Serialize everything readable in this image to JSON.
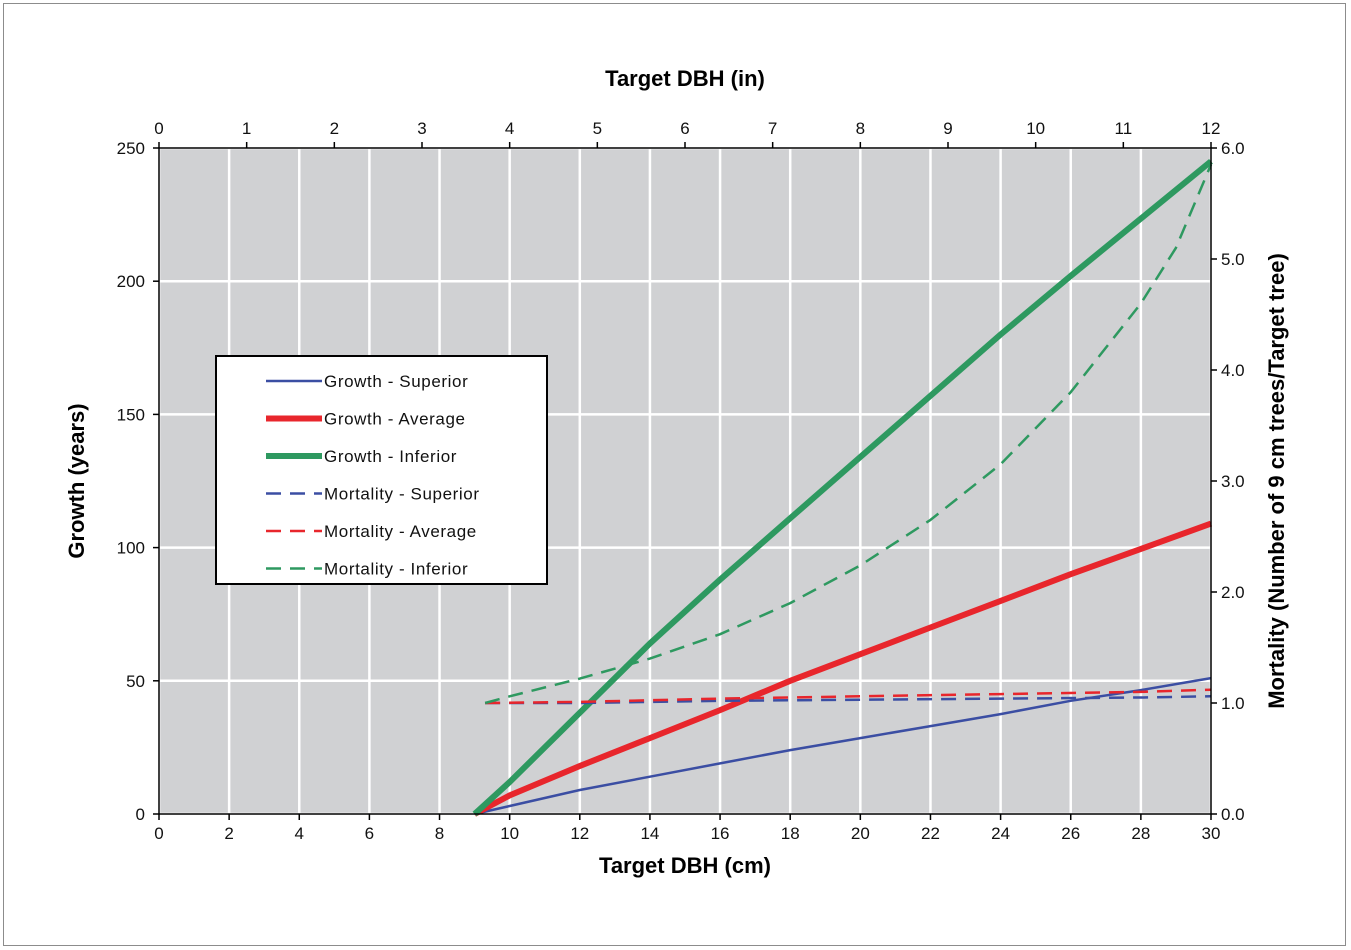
{
  "chart_data": {
    "type": "line",
    "title": "",
    "top_axis": {
      "label": "Target DBH (in)",
      "range": [
        0,
        12
      ],
      "ticks": [
        0,
        1,
        2,
        3,
        4,
        5,
        6,
        7,
        8,
        9,
        10,
        11,
        12
      ]
    },
    "x_axis": {
      "label": "Target DBH (cm)",
      "range": [
        0,
        30
      ],
      "ticks": [
        0,
        2,
        4,
        6,
        8,
        10,
        12,
        14,
        16,
        18,
        20,
        22,
        24,
        26,
        28,
        30
      ]
    },
    "y_axis": {
      "label": "Growth (years)",
      "range": [
        0,
        250
      ],
      "ticks": [
        0,
        50,
        100,
        150,
        200,
        250
      ]
    },
    "y2_axis": {
      "label": "Mortality (Number of 9 cm trees/Target tree)",
      "range": [
        0,
        6
      ],
      "ticks": [
        "0.0",
        "1.0",
        "2.0",
        "3.0",
        "4.0",
        "5.0",
        "6.0"
      ]
    },
    "grid": true,
    "legend_position": "left",
    "series": [
      {
        "name": "Growth - Superior",
        "axis": "left",
        "style": "solid",
        "color": "#3b4ea3",
        "width": 2.5,
        "x": [
          9,
          10,
          12,
          14,
          16,
          18,
          20,
          22,
          24,
          26,
          28,
          30
        ],
        "y": [
          0,
          3,
          9,
          14,
          19,
          24,
          28.5,
          33,
          37.5,
          42.5,
          46.5,
          51
        ]
      },
      {
        "name": "Growth - Average",
        "axis": "left",
        "style": "solid",
        "color": "#e8262c",
        "width": 6,
        "x": [
          9,
          10,
          12,
          14,
          16,
          18,
          20,
          22,
          24,
          26,
          28,
          30
        ],
        "y": [
          0,
          7,
          18,
          28.5,
          39,
          50,
          60,
          70,
          80,
          90,
          99.5,
          109
        ]
      },
      {
        "name": "Growth - Inferior",
        "axis": "left",
        "style": "solid",
        "color": "#2e9960",
        "width": 6,
        "x": [
          9,
          10,
          12,
          14,
          16,
          18,
          20,
          22,
          24,
          26,
          28,
          30
        ],
        "y": [
          0,
          12,
          38,
          64,
          88,
          111,
          134,
          157,
          180,
          202,
          223.5,
          245
        ]
      },
      {
        "name": "Mortality - Superior",
        "axis": "right",
        "style": "dashed",
        "color": "#3b4ea3",
        "width": 2.5,
        "x": [
          9.3,
          12,
          16,
          20,
          24,
          28,
          30
        ],
        "y": [
          1.0,
          1.0,
          1.02,
          1.03,
          1.04,
          1.05,
          1.06
        ]
      },
      {
        "name": "Mortality - Average",
        "axis": "right",
        "style": "dashed",
        "color": "#e8262c",
        "width": 2.5,
        "x": [
          9.3,
          12,
          16,
          20,
          24,
          28,
          30
        ],
        "y": [
          1.0,
          1.01,
          1.04,
          1.06,
          1.08,
          1.1,
          1.12
        ]
      },
      {
        "name": "Mortality - Inferior",
        "axis": "right",
        "style": "dashed",
        "color": "#2e9960",
        "width": 2.5,
        "x": [
          9.3,
          10,
          12,
          14,
          16,
          18,
          20,
          22,
          24,
          26,
          28,
          29,
          30
        ],
        "y": [
          1.0,
          1.06,
          1.22,
          1.4,
          1.62,
          1.9,
          2.24,
          2.65,
          3.15,
          3.8,
          4.6,
          5.1,
          5.85
        ]
      }
    ]
  }
}
